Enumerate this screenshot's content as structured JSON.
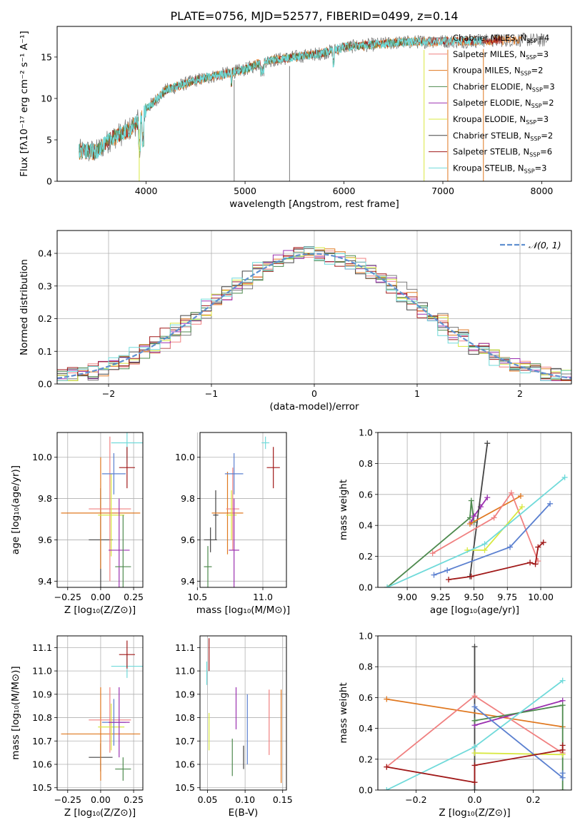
{
  "figure_title": "PLATE=0756, MJD=52577, FIBERID=0499, z=0.14",
  "colors": {
    "chabrier_miles": "#7b7b7b",
    "salpeter_miles": "#f08080",
    "kroupa_miles": "#e07820",
    "chabrier_elodie": "#4e8a4e",
    "salpeter_elodie": "#9b30b0",
    "kroupa_elodie": "#d8e840",
    "chabrier_stelib": "#444444",
    "salpeter_stelib": "#a01818",
    "kroupa_stelib": "#70dada",
    "blue": "#5b80d0",
    "gaussian": "#6090d0"
  },
  "chart_data": [
    {
      "id": "spectrum",
      "type": "line",
      "xlabel": "wavelength [Angstrom, rest frame]",
      "ylabel": "Flux [fλ10⁻¹⁷ erg cm⁻² s⁻¹ A⁻¹]",
      "xlim": [
        3100,
        8300
      ],
      "ylim": [
        0,
        18.7
      ],
      "xticks": [
        "4000",
        "5000",
        "6000",
        "7000",
        "8000"
      ],
      "yticks": [
        "0",
        "5",
        "10",
        "15"
      ],
      "continuum_x": [
        3320,
        3500,
        3650,
        3800,
        3950,
        4000,
        4200,
        4500,
        4800,
        5000,
        5200,
        5500,
        5800,
        6000,
        6300,
        6600,
        6900,
        7200,
        7500,
        7800,
        8050
      ],
      "continuum_y": [
        3.6,
        3.6,
        5.2,
        6.0,
        7.5,
        8.7,
        11.0,
        12.2,
        13.0,
        13.5,
        14.5,
        15.0,
        15.5,
        16.2,
        16.5,
        16.8,
        16.9,
        16.9,
        17.0,
        17.1,
        17.0
      ],
      "legend": [
        {
          "label": "Chabrier MILES, N",
          "sub": "SSP",
          "eq": "=4",
          "color": "chabrier_miles"
        },
        {
          "label": "Salpeter MILES, N",
          "sub": "SSP",
          "eq": "=3",
          "color": "salpeter_miles"
        },
        {
          "label": "Kroupa MILES, N",
          "sub": "SSP",
          "eq": "=2",
          "color": "kroupa_miles"
        },
        {
          "label": "Chabrier ELODIE, N",
          "sub": "SSP",
          "eq": "=3",
          "color": "chabrier_elodie"
        },
        {
          "label": "Salpeter ELODIE, N",
          "sub": "SSP",
          "eq": "=2",
          "color": "salpeter_elodie"
        },
        {
          "label": "Kroupa ELODIE, N",
          "sub": "SSP",
          "eq": "=3",
          "color": "kroupa_elodie"
        },
        {
          "label": "Chabrier STELIB, N",
          "sub": "SSP",
          "eq": "=2",
          "color": "chabrier_stelib"
        },
        {
          "label": "Salpeter STELIB, N",
          "sub": "SSP",
          "eq": "=6",
          "color": "salpeter_stelib"
        },
        {
          "label": "Kroupa STELIB, N",
          "sub": "SSP",
          "eq": "=3",
          "color": "kroupa_stelib"
        }
      ]
    },
    {
      "id": "residuals",
      "type": "line",
      "xlabel": "(data-model)/error",
      "ylabel": "Normed distribution",
      "xlim": [
        -2.5,
        2.5
      ],
      "ylim": [
        0,
        0.47
      ],
      "xticks": [
        "−2",
        "−1",
        "0",
        "1",
        "2"
      ],
      "yticks": [
        "0.0",
        "0.1",
        "0.2",
        "0.3",
        "0.4"
      ],
      "legend": "𝒩(0, 1)"
    },
    {
      "id": "age_vs_Z",
      "type": "scatter",
      "xlabel": "Z [log₁₀(Z/Z⊙)]",
      "ylabel": "age  [log₁₀(age/yr)]",
      "xlim": [
        -0.33,
        0.32
      ],
      "ylim": [
        9.37,
        10.12
      ],
      "xticks": [
        "−0.25",
        "0.00",
        "0.25"
      ],
      "yticks": [
        "9.4",
        "9.6",
        "9.8",
        "10.0"
      ],
      "points": [
        {
          "x": 0.0,
          "y": 9.6,
          "xerr": 0.09,
          "yerr": 0.25,
          "color": "chabrier_stelib"
        },
        {
          "x": 0.0,
          "y": 9.73,
          "xerr": 0.3,
          "yerr": 0.27,
          "color": "kroupa_miles"
        },
        {
          "x": 0.07,
          "y": 9.75,
          "xerr": 0.16,
          "yerr": 0.35,
          "color": "salpeter_miles"
        },
        {
          "x": 0.08,
          "y": 9.72,
          "xerr": 0.1,
          "yerr": 0.2,
          "color": "kroupa_elodie"
        },
        {
          "x": 0.1,
          "y": 9.92,
          "xerr": 0.09,
          "yerr": 0.1,
          "color": "blue"
        },
        {
          "x": 0.14,
          "y": 9.55,
          "xerr": 0.08,
          "yerr": 0.25,
          "color": "salpeter_elodie"
        },
        {
          "x": 0.17,
          "y": 9.47,
          "xerr": 0.06,
          "yerr": 0.25,
          "color": "chabrier_elodie"
        },
        {
          "x": 0.2,
          "y": 10.07,
          "xerr": 0.12,
          "yerr": 0.1,
          "color": "kroupa_stelib"
        },
        {
          "x": 0.2,
          "y": 9.95,
          "xerr": 0.06,
          "yerr": 0.1,
          "color": "salpeter_stelib"
        }
      ]
    },
    {
      "id": "age_vs_mass",
      "type": "scatter",
      "xlabel": "mass [log₁₀(M/M⊙)]",
      "ylabel": "",
      "xlim": [
        10.52,
        11.18
      ],
      "ylim": [
        9.37,
        10.12
      ],
      "xticks": [
        "10.5",
        "11.0"
      ],
      "yticks": [
        "9.4",
        "9.6",
        "9.8",
        "10.0"
      ],
      "points": [
        {
          "x": 10.6,
          "y": 9.6,
          "xerr": 0.05,
          "yerr": 0.06,
          "color": "chabrier_stelib"
        },
        {
          "x": 10.58,
          "y": 9.47,
          "xerr": 0.03,
          "yerr": 0.1,
          "color": "chabrier_elodie"
        },
        {
          "x": 10.64,
          "y": 9.72,
          "xerr": 0.02,
          "yerr": 0.12,
          "color": "chabrier_stelib"
        },
        {
          "x": 10.73,
          "y": 9.73,
          "xerr": 0.12,
          "yerr": 0.2,
          "color": "kroupa_miles"
        },
        {
          "x": 10.77,
          "y": 9.75,
          "xerr": 0.05,
          "yerr": 0.2,
          "color": "salpeter_miles"
        },
        {
          "x": 10.76,
          "y": 9.72,
          "xerr": 0.04,
          "yerr": 0.12,
          "color": "kroupa_elodie"
        },
        {
          "x": 10.78,
          "y": 9.92,
          "xerr": 0.07,
          "yerr": 0.1,
          "color": "blue"
        },
        {
          "x": 10.78,
          "y": 9.55,
          "xerr": 0.04,
          "yerr": 0.25,
          "color": "salpeter_elodie"
        },
        {
          "x": 11.08,
          "y": 9.95,
          "xerr": 0.05,
          "yerr": 0.1,
          "color": "salpeter_stelib"
        },
        {
          "x": 11.02,
          "y": 10.07,
          "xerr": 0.03,
          "yerr": 0.03,
          "color": "kroupa_stelib"
        }
      ]
    },
    {
      "id": "weight_vs_age",
      "type": "line",
      "xlabel": "age  [log₁₀(age/yr)]",
      "ylabel": "mass weight",
      "xlim": [
        8.78,
        10.23
      ],
      "ylim": [
        0,
        1.0
      ],
      "xticks": [
        "9.00",
        "9.25",
        "9.50",
        "9.75",
        "10.00"
      ],
      "yticks": [
        "0.0",
        "0.2",
        "0.4",
        "0.6",
        "0.8",
        "1.0"
      ],
      "series": [
        {
          "color": "chabrier_elodie",
          "x": [
            8.85,
            9.47,
            9.48,
            9.5
          ],
          "y": [
            0.0,
            0.45,
            0.56,
            0.42
          ]
        },
        {
          "color": "salpeter_elodie",
          "x": [
            9.48,
            9.5,
            9.55,
            9.6
          ],
          "y": [
            0.42,
            0.46,
            0.52,
            0.58
          ]
        },
        {
          "color": "chabrier_stelib",
          "x": [
            9.47,
            9.6
          ],
          "y": [
            0.07,
            0.93
          ]
        },
        {
          "color": "kroupa_miles",
          "x": [
            9.47,
            9.85
          ],
          "y": [
            0.41,
            0.59
          ]
        },
        {
          "color": "salpeter_miles",
          "x": [
            9.19,
            9.65,
            9.78,
            9.98
          ],
          "y": [
            0.22,
            0.45,
            0.61,
            0.17
          ]
        },
        {
          "color": "kroupa_elodie",
          "x": [
            9.45,
            9.58,
            9.86
          ],
          "y": [
            0.24,
            0.24,
            0.52
          ]
        },
        {
          "color": "kroupa_stelib",
          "x": [
            8.85,
            9.58,
            10.18
          ],
          "y": [
            0.0,
            0.28,
            0.71
          ]
        },
        {
          "color": "blue",
          "x": [
            9.2,
            9.3,
            9.77,
            10.07
          ],
          "y": [
            0.08,
            0.11,
            0.26,
            0.54
          ]
        },
        {
          "color": "salpeter_stelib",
          "x": [
            9.31,
            9.48,
            9.92,
            9.96,
            9.98,
            10.02
          ],
          "y": [
            0.05,
            0.07,
            0.16,
            0.15,
            0.26,
            0.29
          ]
        }
      ]
    },
    {
      "id": "mass_vs_Z",
      "type": "scatter",
      "xlabel": "Z [log₁₀(Z/Z⊙)]",
      "ylabel": "mass [log₁₀(M/M⊙)]",
      "xlim": [
        -0.33,
        0.32
      ],
      "ylim": [
        10.49,
        11.15
      ],
      "xticks": [
        "−0.25",
        "0.00",
        "0.25"
      ],
      "yticks": [
        "10.5",
        "10.6",
        "10.7",
        "10.8",
        "10.9",
        "11.0",
        "11.1"
      ],
      "points": [
        {
          "x": 0.0,
          "y": 10.63,
          "xerr": 0.09,
          "yerr": 0.06,
          "color": "chabrier_stelib"
        },
        {
          "x": 0.0,
          "y": 10.73,
          "xerr": 0.3,
          "yerr": 0.2,
          "color": "kroupa_miles"
        },
        {
          "x": 0.07,
          "y": 10.79,
          "xerr": 0.16,
          "yerr": 0.14,
          "color": "salpeter_miles"
        },
        {
          "x": 0.08,
          "y": 10.76,
          "xerr": 0.1,
          "yerr": 0.1,
          "color": "kroupa_elodie"
        },
        {
          "x": 0.1,
          "y": 10.78,
          "xerr": 0.09,
          "yerr": 0.1,
          "color": "blue"
        },
        {
          "x": 0.14,
          "y": 10.78,
          "xerr": 0.08,
          "yerr": 0.15,
          "color": "salpeter_elodie"
        },
        {
          "x": 0.17,
          "y": 10.58,
          "xerr": 0.06,
          "yerr": 0.05,
          "color": "chabrier_elodie"
        },
        {
          "x": 0.2,
          "y": 11.02,
          "xerr": 0.12,
          "yerr": 0.05,
          "color": "kroupa_stelib"
        },
        {
          "x": 0.2,
          "y": 11.07,
          "xerr": 0.06,
          "yerr": 0.06,
          "color": "salpeter_stelib"
        }
      ]
    },
    {
      "id": "mass_vs_ebv",
      "type": "scatter",
      "xlabel": "E(B-V)",
      "ylabel": "",
      "xlim": [
        0.04,
        0.155
      ],
      "ylim": [
        10.49,
        11.15
      ],
      "xticks": [
        "0.05",
        "0.10",
        "0.15"
      ],
      "yticks": [
        "10.5",
        "10.6",
        "10.7",
        "10.8",
        "10.9",
        "11.0",
        "11.1"
      ],
      "points": [
        {
          "x": 0.049,
          "y": 10.99,
          "xerr": 0,
          "yerr": 0.05,
          "color": "kroupa_stelib"
        },
        {
          "x": 0.052,
          "y": 11.07,
          "xerr": 0,
          "yerr": 0.07,
          "color": "salpeter_stelib"
        },
        {
          "x": 0.052,
          "y": 10.74,
          "xerr": 0,
          "yerr": 0.08,
          "color": "kroupa_elodie"
        },
        {
          "x": 0.083,
          "y": 10.63,
          "xerr": 0,
          "yerr": 0.08,
          "color": "chabrier_elodie"
        },
        {
          "x": 0.088,
          "y": 10.84,
          "xerr": 0,
          "yerr": 0.09,
          "color": "salpeter_elodie"
        },
        {
          "x": 0.098,
          "y": 10.63,
          "xerr": 0,
          "yerr": 0.05,
          "color": "chabrier_stelib"
        },
        {
          "x": 0.103,
          "y": 10.75,
          "xerr": 0,
          "yerr": 0.15,
          "color": "blue"
        },
        {
          "x": 0.132,
          "y": 10.78,
          "xerr": 0,
          "yerr": 0.14,
          "color": "salpeter_miles"
        },
        {
          "x": 0.148,
          "y": 10.72,
          "xerr": 0,
          "yerr": 0.2,
          "color": "kroupa_miles"
        }
      ]
    },
    {
      "id": "weight_vs_Z",
      "type": "line",
      "xlabel": "Z [log₁₀(Z/Z⊙)]",
      "ylabel": "mass weight",
      "xlim": [
        -0.33,
        0.33
      ],
      "ylim": [
        0,
        1.0
      ],
      "xticks": [
        "−0.2",
        "0.0",
        "0.2"
      ],
      "yticks": [
        "0.0",
        "0.2",
        "0.4",
        "0.6",
        "0.8",
        "1.0"
      ],
      "series": [
        {
          "color": "chabrier_stelib",
          "x": [
            0.0,
            0.0
          ],
          "y": [
            0.0,
            0.93
          ]
        },
        {
          "color": "kroupa_miles",
          "x": [
            -0.3,
            0.3
          ],
          "y": [
            0.59,
            0.41
          ]
        },
        {
          "color": "salpeter_miles",
          "x": [
            -0.3,
            0.0,
            0.3
          ],
          "y": [
            0.15,
            0.61,
            0.24
          ]
        },
        {
          "color": "salpeter_elodie",
          "x": [
            0.0,
            0.3
          ],
          "y": [
            0.42,
            0.58
          ]
        },
        {
          "color": "chabrier_elodie",
          "x": [
            0.0,
            0.3,
            0.3
          ],
          "y": [
            0.45,
            0.55,
            0.0
          ]
        },
        {
          "color": "kroupa_elodie",
          "x": [
            0.0,
            0.3
          ],
          "y": [
            0.24,
            0.23
          ]
        },
        {
          "color": "kroupa_stelib",
          "x": [
            -0.3,
            0.0,
            0.3
          ],
          "y": [
            0.0,
            0.28,
            0.71
          ]
        },
        {
          "color": "blue",
          "x": [
            0.0,
            0.3,
            0.3
          ],
          "y": [
            0.54,
            0.08,
            0.11
          ]
        },
        {
          "color": "salpeter_stelib",
          "x": [
            -0.3,
            0.0,
            0.0,
            0.3,
            0.3
          ],
          "y": [
            0.15,
            0.05,
            0.16,
            0.26,
            0.29
          ]
        }
      ]
    }
  ]
}
